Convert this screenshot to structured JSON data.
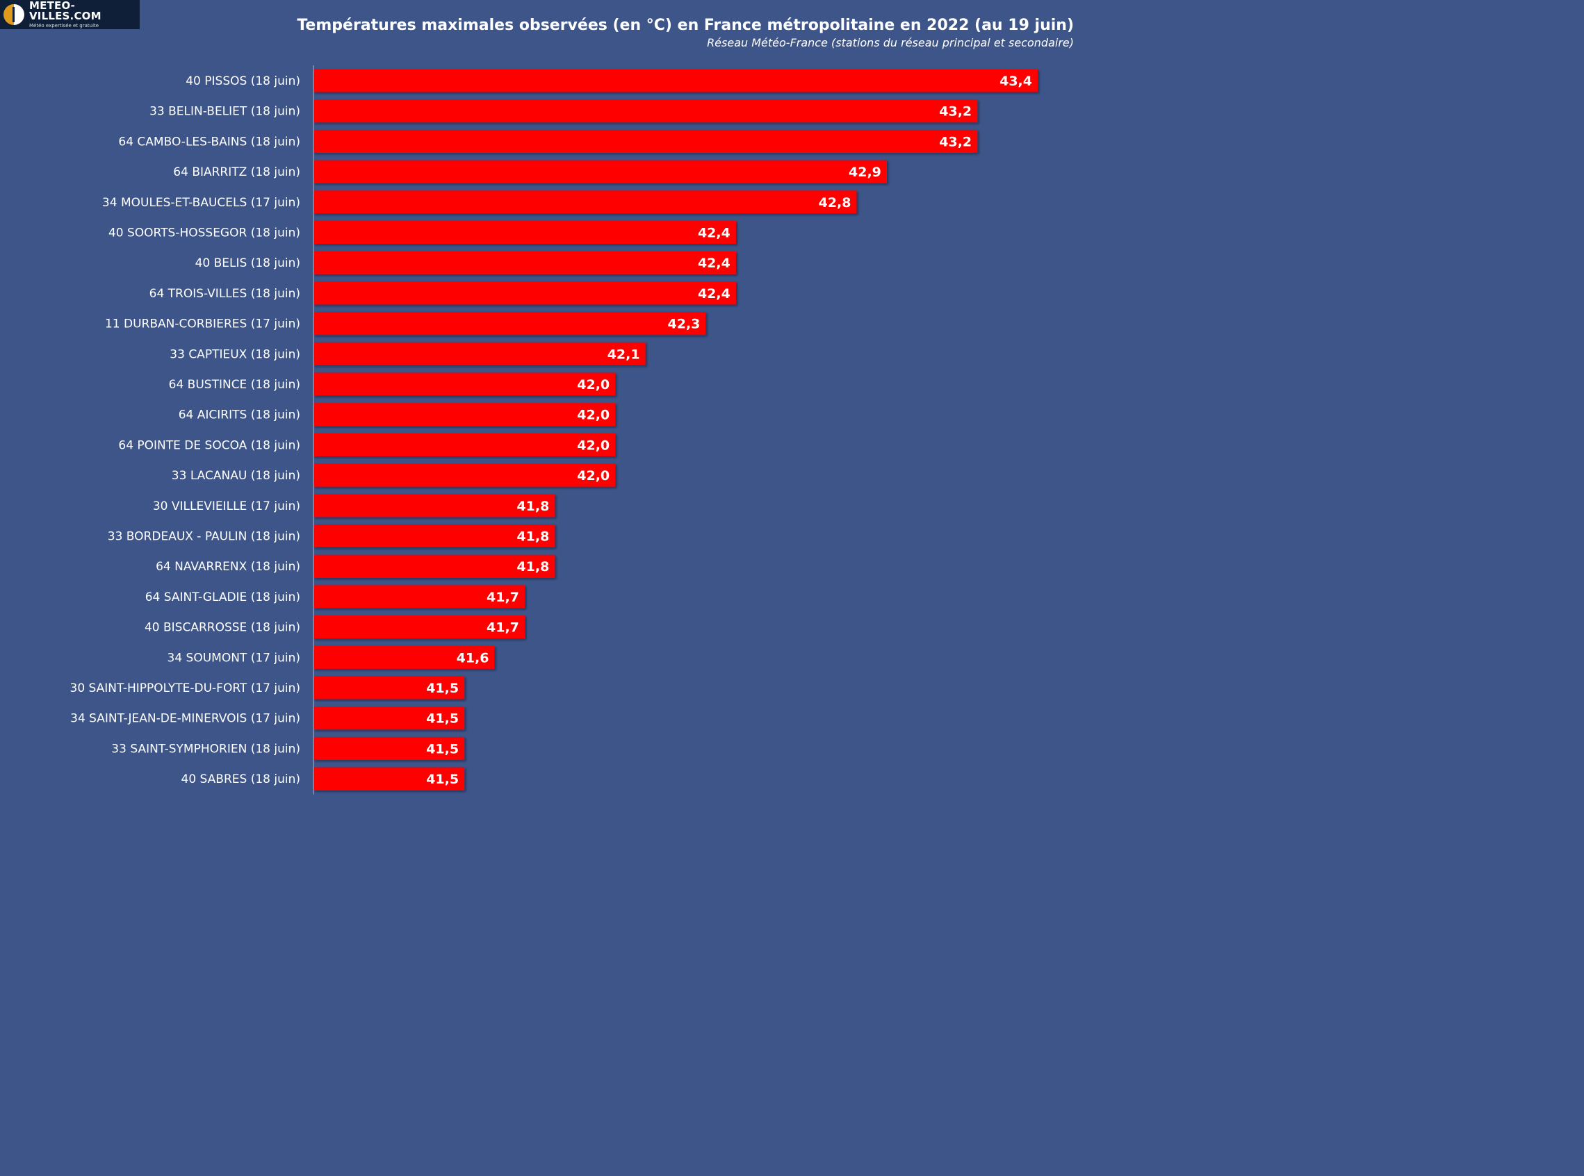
{
  "logo": {
    "name": "METEO-VILLES.COM",
    "tagline": "Météo expertisée et gratuite"
  },
  "colors": {
    "background": "#3d5588",
    "bar": "#ff0000",
    "text": "#ffffff"
  },
  "chart_data": {
    "type": "bar",
    "orientation": "horizontal",
    "title": "Températures maximales observées (en °C) en France métropolitaine en 2022 (au 19 juin)",
    "subtitle": "Réseau Météo-France (stations du réseau principal et secondaire)",
    "categories": [
      "40 PISSOS (18 juin)",
      "33 BELIN-BELIET (18 juin)",
      "64 CAMBO-LES-BAINS (18 juin)",
      "64 BIARRITZ (18 juin)",
      "34 MOULES-ET-BAUCELS (17 juin)",
      "40 SOORTS-HOSSEGOR (18 juin)",
      "40 BELIS (18 juin)",
      "64 TROIS-VILLES (18 juin)",
      "11 DURBAN-CORBIERES (17 juin)",
      "33 CAPTIEUX (18 juin)",
      "64 BUSTINCE (18 juin)",
      "64 AICIRITS (18 juin)",
      "64 POINTE DE SOCOA (18 juin)",
      "33 LACANAU (18 juin)",
      "30 VILLEVIEILLE (17 juin)",
      "33 BORDEAUX - PAULIN (18 juin)",
      "64 NAVARRENX (18 juin)",
      "64 SAINT-GLADIE (18 juin)",
      "40 BISCARROSSE (18 juin)",
      "34 SOUMONT (17 juin)",
      "30 SAINT-HIPPOLYTE-DU-FORT (17 juin)",
      "34 SAINT-JEAN-DE-MINERVOIS (17 juin)",
      "33 SAINT-SYMPHORIEN (18 juin)",
      "40 SABRES (18 juin)"
    ],
    "values": [
      43.4,
      43.2,
      43.2,
      42.9,
      42.8,
      42.4,
      42.4,
      42.4,
      42.3,
      42.1,
      42.0,
      42.0,
      42.0,
      42.0,
      41.8,
      41.8,
      41.8,
      41.7,
      41.7,
      41.6,
      41.5,
      41.5,
      41.5,
      41.5
    ],
    "value_labels": [
      "43,4",
      "43,2",
      "43,2",
      "42,9",
      "42,8",
      "42,4",
      "42,4",
      "42,4",
      "42,3",
      "42,1",
      "42,0",
      "42,0",
      "42,0",
      "42,0",
      "41,8",
      "41,8",
      "41,8",
      "41,7",
      "41,7",
      "41,6",
      "41,5",
      "41,5",
      "41,5",
      "41,5"
    ],
    "xlim": [
      41.0,
      43.4
    ],
    "grid": false,
    "legend": "none"
  }
}
